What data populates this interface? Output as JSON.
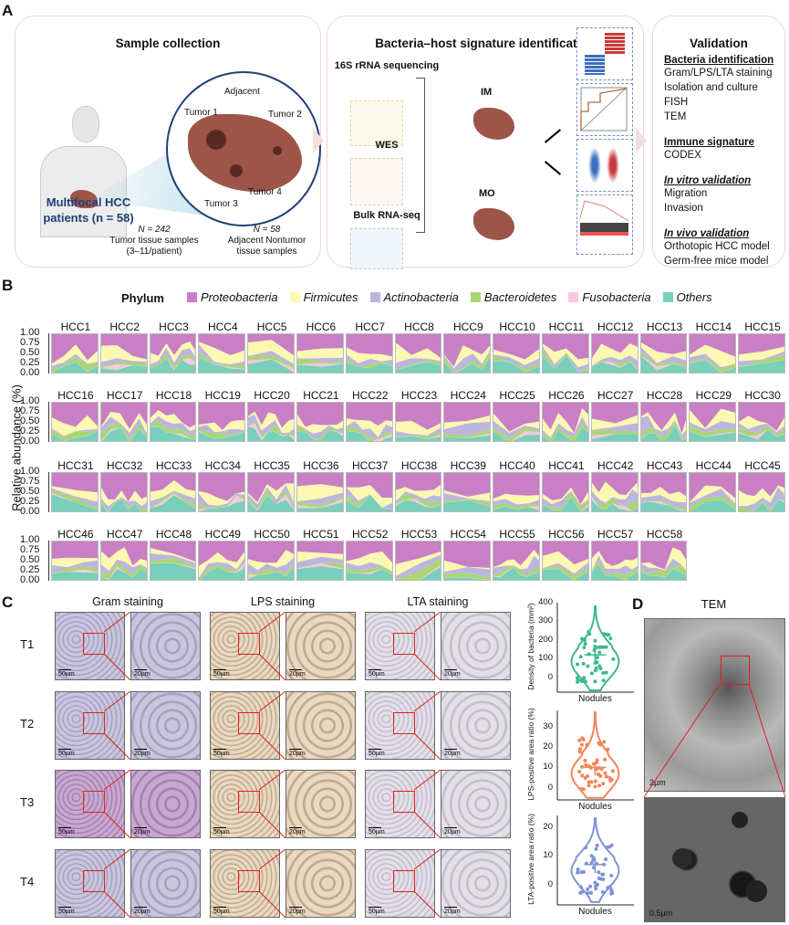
{
  "panel_labels": {
    "a": "A",
    "b": "B",
    "c": "C",
    "d": "D"
  },
  "panelA": {
    "sample": {
      "title": "Sample collection",
      "adjacent": "Adjacent",
      "tumor1": "Tumor 1",
      "tumor2": "Tumor 2",
      "tumor3": "Tumor 3",
      "tumor4": "Tumor 4",
      "patients_line1": "Multifocal HCC",
      "patients_line2": "patients (n = 58)",
      "tumor_n": "N = 242",
      "tumor_desc1": "Tumor tissue samples",
      "tumor_desc2": "(3–11/patient)",
      "adj_n": "N = 58",
      "adj_desc1": "Adjacent Nontumor",
      "adj_desc2": "tissue samples"
    },
    "signature": {
      "title": "Bacteria–host signature identification",
      "seq16s": "16S rRNA sequencing",
      "wes": "WES",
      "rnaseq": "Bulk RNA-seq",
      "im": "IM",
      "mo": "MO"
    },
    "validation": {
      "title": "Validation",
      "groups": [
        {
          "heading": "Bacteria identification",
          "items": [
            "Gram/LPS/LTA staining",
            "Isolation and culture",
            "FISH",
            "TEM"
          ]
        },
        {
          "heading": "Immune signature",
          "items": [
            "CODEX"
          ]
        },
        {
          "heading": "In vitro validation",
          "items": [
            "Migration",
            "Invasion"
          ]
        },
        {
          "heading": "In vivo validation",
          "items": [
            "Orthotopic HCC model",
            "Germ-free mice model"
          ]
        }
      ]
    }
  },
  "panelB": {
    "legend_title": "Phylum",
    "phyla": [
      {
        "name": "Proteobacteria",
        "color": "#c97fc3"
      },
      {
        "name": "Firmicutes",
        "color": "#fbf8b2"
      },
      {
        "name": "Actinobacteria",
        "color": "#bcb5dd"
      },
      {
        "name": "Bacteroidetes",
        "color": "#a9d672"
      },
      {
        "name": "Fusobacteria",
        "color": "#f7c7df"
      },
      {
        "name": "Others",
        "color": "#78cfbb"
      }
    ],
    "ylabel": "Relative abundance (%)",
    "yticks": [
      "1.00",
      "0.75",
      "0.50",
      "0.25",
      "0.00"
    ],
    "patients": [
      "HCC1",
      "HCC2",
      "HCC3",
      "HCC4",
      "HCC5",
      "HCC6",
      "HCC7",
      "HCC8",
      "HCC9",
      "HCC10",
      "HCC11",
      "HCC12",
      "HCC13",
      "HCC14",
      "HCC15",
      "HCC16",
      "HCC17",
      "HCC18",
      "HCC19",
      "HCC20",
      "HCC21",
      "HCC22",
      "HCC23",
      "HCC24",
      "HCC25",
      "HCC26",
      "HCC27",
      "HCC28",
      "HCC29",
      "HCC30",
      "HCC31",
      "HCC32",
      "HCC33",
      "HCC34",
      "HCC35",
      "HCC36",
      "HCC37",
      "HCC38",
      "HCC39",
      "HCC40",
      "HCC41",
      "HCC42",
      "HCC43",
      "HCC44",
      "HCC45",
      "HCC46",
      "HCC47",
      "HCC48",
      "HCC49",
      "HCC50",
      "HCC51",
      "HCC52",
      "HCC53",
      "HCC54",
      "HCC55",
      "HCC56",
      "HCC57",
      "HCC58"
    ]
  },
  "panelC": {
    "columns": [
      "Gram staining",
      "LPS staining",
      "LTA staining"
    ],
    "rows": [
      "T1",
      "T2",
      "T3",
      "T4"
    ],
    "scale_low": "50µm",
    "scale_high": "20µm",
    "violins": [
      {
        "ylabel": "Density of bacteria (mm²)",
        "xlabel": "Nodules",
        "yticks": [
          0,
          100,
          200,
          300,
          400
        ],
        "ymin": -80,
        "ymax": 400,
        "median": 120,
        "q1": 70,
        "q3": 160,
        "max": 380,
        "min": -70,
        "color": "#3db88f"
      },
      {
        "ylabel": "LPS-positive area ratio (%)",
        "xlabel": "Nodules",
        "yticks": [
          0,
          10,
          20,
          30
        ],
        "ymin": -6,
        "ymax": 38,
        "median": 10,
        "q1": 6,
        "q3": 12,
        "max": 37,
        "min": -5,
        "color": "#f4845a"
      },
      {
        "ylabel": "LTA-positive area ratio (%)",
        "xlabel": "Nodules",
        "yticks": [
          0,
          10,
          20
        ],
        "ymin": -7,
        "ymax": 24,
        "median": 7,
        "q1": 4,
        "q3": 9,
        "max": 23,
        "min": -6,
        "color": "#7f93d4"
      }
    ]
  },
  "panelD": {
    "title": "TEM",
    "scale_top": "2µm",
    "scale_bottom": "0.5µm"
  }
}
